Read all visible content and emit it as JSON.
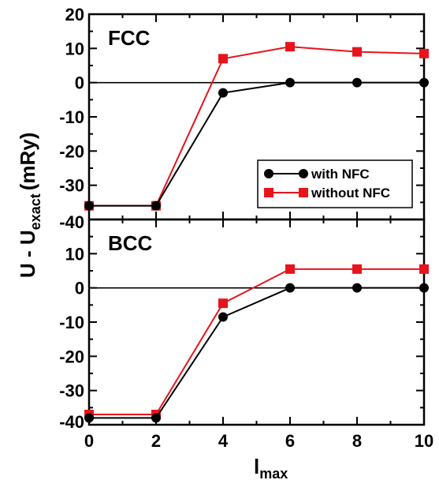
{
  "chart_data": {
    "type": "line",
    "xlabel_main": "l",
    "xlabel_sub": "max",
    "ylabel_main": "U - U",
    "ylabel_sub": "exact",
    "ylabel_unit": "(mRy)",
    "x_ticks": [
      "0",
      "2",
      "4",
      "6",
      "8",
      "10"
    ],
    "xlim": [
      0,
      10
    ],
    "legend": {
      "placement": "inside-right of top panel",
      "entries": [
        {
          "label": "with NFC",
          "color": "#000000",
          "marker": "circle"
        },
        {
          "label": "without NFC",
          "color": "#e8141c",
          "marker": "square"
        }
      ]
    },
    "panels": [
      {
        "label": "FCC",
        "ylim": [
          -40,
          20
        ],
        "y_ticks": [
          "20",
          "10",
          "0",
          "-10",
          "-20",
          "-30",
          "-40"
        ],
        "x": [
          0,
          2,
          4,
          6,
          8,
          10
        ],
        "series": [
          {
            "name": "with NFC",
            "values": [
              -36,
              -36,
              -3,
              0,
              0,
              0
            ]
          },
          {
            "name": "without NFC",
            "values": [
              -36,
              -36,
              7,
              10.5,
              9,
              8.5
            ]
          }
        ]
      },
      {
        "label": "BCC",
        "ylim": [
          -40,
          20
        ],
        "y_ticks": [
          "10",
          "0",
          "-10",
          "-20",
          "-30",
          "-40"
        ],
        "x": [
          0,
          2,
          4,
          6,
          8,
          10
        ],
        "series": [
          {
            "name": "with NFC",
            "values": [
              -38,
              -38,
              -8.5,
              0,
              0,
              0
            ]
          },
          {
            "name": "without NFC",
            "values": [
              -37,
              -37,
              -4.5,
              5.5,
              5.5,
              5.5
            ]
          }
        ]
      }
    ]
  }
}
